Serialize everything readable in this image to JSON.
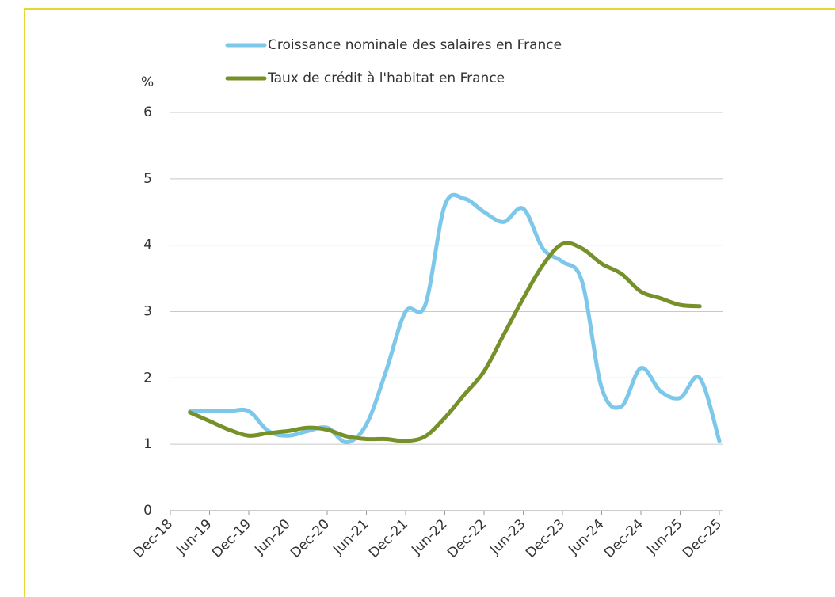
{
  "chart_data": {
    "type": "line",
    "y_label": "%",
    "categories": [
      "Dec-18",
      null,
      "Jun-19",
      null,
      "Dec-19",
      null,
      "Jun-20",
      null,
      "Dec-20",
      null,
      "Jun-21",
      null,
      "Dec-21",
      null,
      "Jun-22",
      null,
      "Dec-22",
      null,
      "Jun-23",
      null,
      "Dec-23",
      null,
      "Jun-24",
      null,
      "Dec-24",
      null,
      "Jun-25",
      null,
      "Dec-25"
    ],
    "series": [
      {
        "name": "Croissance nominale des salaires en France",
        "color": "#7dc8ea",
        "values": [
          null,
          1.5,
          1.5,
          1.5,
          1.5,
          1.2,
          1.13,
          1.2,
          1.25,
          1.03,
          1.3,
          2.1,
          3.0,
          3.1,
          4.6,
          4.7,
          4.5,
          4.35,
          4.55,
          3.95,
          3.75,
          3.45,
          1.85,
          1.57,
          2.15,
          1.8,
          1.7,
          2.0,
          1.05
        ]
      },
      {
        "name": "Taux de crédit à l'habitat en France",
        "color": "#77912a",
        "values": [
          null,
          1.48,
          1.35,
          1.22,
          1.13,
          1.17,
          1.2,
          1.25,
          1.22,
          1.12,
          1.08,
          1.08,
          1.05,
          1.12,
          1.4,
          1.75,
          2.1,
          2.65,
          3.2,
          3.7,
          4.02,
          3.95,
          3.72,
          3.57,
          3.3,
          3.2,
          3.1,
          3.08,
          null
        ]
      }
    ],
    "ylim": [
      0,
      6
    ],
    "yticks": [
      0,
      1,
      2,
      3,
      4,
      5,
      6
    ],
    "grid": true,
    "legend": "top"
  }
}
